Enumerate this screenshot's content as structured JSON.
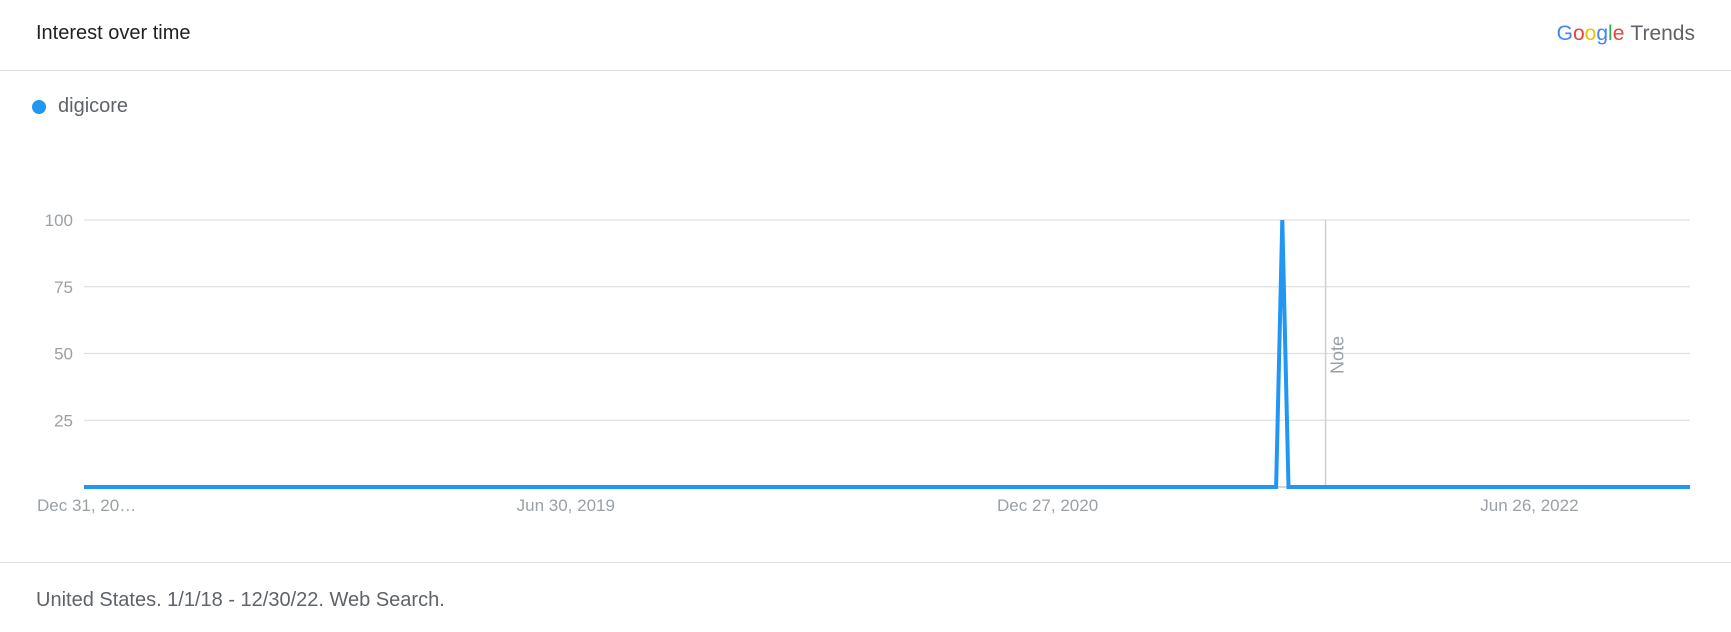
{
  "header": {
    "title": "Interest over time",
    "brand_google": [
      "G",
      "o",
      "o",
      "g",
      "l",
      "e"
    ],
    "brand_colors": [
      "#4285f4",
      "#ea4335",
      "#fbbc05",
      "#4285f4",
      "#34a853",
      "#ea4335"
    ],
    "brand_trends": "Trends"
  },
  "footer": {
    "text": "United States. 1/1/18 - 12/30/22. Web Search."
  },
  "chart_data": {
    "type": "line",
    "title": "Interest over time",
    "series": [
      {
        "name": "digicore",
        "color": "#2196f3",
        "points": [
          [
            "2017-12-31",
            0
          ],
          [
            "2021-09-12",
            0
          ],
          [
            "2021-09-19",
            100
          ],
          [
            "2021-09-26",
            0
          ],
          [
            "2022-12-25",
            0
          ]
        ]
      }
    ],
    "x_tick_labels": [
      "Dec 31, 20…",
      "Jun 30, 2019",
      "Dec 27, 2020",
      "Jun 26, 2022"
    ],
    "x_tick_dates": [
      "2017-12-31",
      "2019-06-30",
      "2020-12-27",
      "2022-06-26"
    ],
    "xlim": [
      "2017-12-31",
      "2022-12-25"
    ],
    "y_ticks": [
      25,
      50,
      75,
      100
    ],
    "ylim": [
      0,
      100
    ],
    "grid": true,
    "annotation": {
      "label": "Note",
      "date": "2021-11-07"
    }
  }
}
